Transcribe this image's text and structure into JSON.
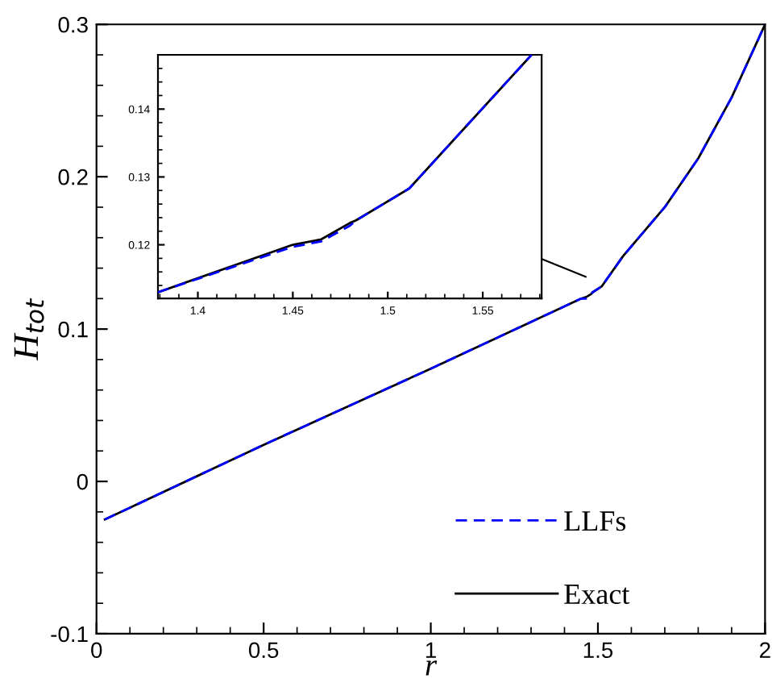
{
  "chart_data": [
    {
      "type": "line",
      "xlabel": "r",
      "ylabel": "H$_{tot}$",
      "xlim": [
        0,
        2
      ],
      "ylim": [
        -0.1,
        0.3
      ],
      "xticks": [
        0,
        0.5,
        1,
        1.5,
        2
      ],
      "yticks": [
        {
          "value": -0.1,
          "label": "-0.1"
        },
        0,
        0.1,
        0.2,
        0.3
      ],
      "legend": "bottom right",
      "grid": false,
      "series": [
        {
          "name": "LLFs",
          "color": "#0000ff",
          "line_style": "dashed",
          "x": [
            0.025,
            0.5,
            1.0,
            1.45,
            1.465,
            1.48,
            1.4833,
            1.5113,
            1.5757,
            1.7,
            1.8,
            1.9,
            2.0
          ],
          "values": [
            -0.025,
            0.024,
            0.074,
            0.12,
            0.12,
            0.123,
            0.124,
            0.128,
            0.148,
            0.18,
            0.212,
            0.252,
            0.3
          ]
        },
        {
          "name": "Exact",
          "color": "#000000",
          "line_style": "solid",
          "x": [
            0.025,
            0.5,
            1.0,
            1.45,
            1.465,
            1.48,
            1.4833,
            1.5113,
            1.5757,
            1.7,
            1.8,
            1.9,
            2.0
          ],
          "values": [
            -0.025,
            0.024,
            0.074,
            0.12,
            0.121,
            0.123,
            0.124,
            0.128,
            0.148,
            0.18,
            0.212,
            0.252,
            0.3
          ]
        }
      ]
    },
    {
      "type": "line",
      "xlim": [
        1.379,
        1.581
      ],
      "ylim": [
        0.1121,
        0.148
      ],
      "xticks": [
        1.4,
        1.45,
        1.5,
        1.55
      ],
      "yticks": [
        0.12,
        0.13,
        0.14
      ],
      "grid": false,
      "series": [
        {
          "color": "#0000ff",
          "line_style": "dashed",
          "x": [
            1.379,
            1.45,
            1.465,
            1.48,
            1.4833,
            1.5113,
            1.5757
          ],
          "values": [
            0.113,
            0.1197,
            0.1205,
            0.1228,
            0.1236,
            0.1283,
            0.148
          ]
        },
        {
          "color": "#000000",
          "line_style": "solid",
          "x": [
            1.379,
            1.45,
            1.465,
            1.48,
            1.4833,
            1.5113,
            1.5757
          ],
          "values": [
            0.113,
            0.12,
            0.1208,
            0.1232,
            0.1236,
            0.1283,
            0.148
          ]
        }
      ]
    }
  ]
}
